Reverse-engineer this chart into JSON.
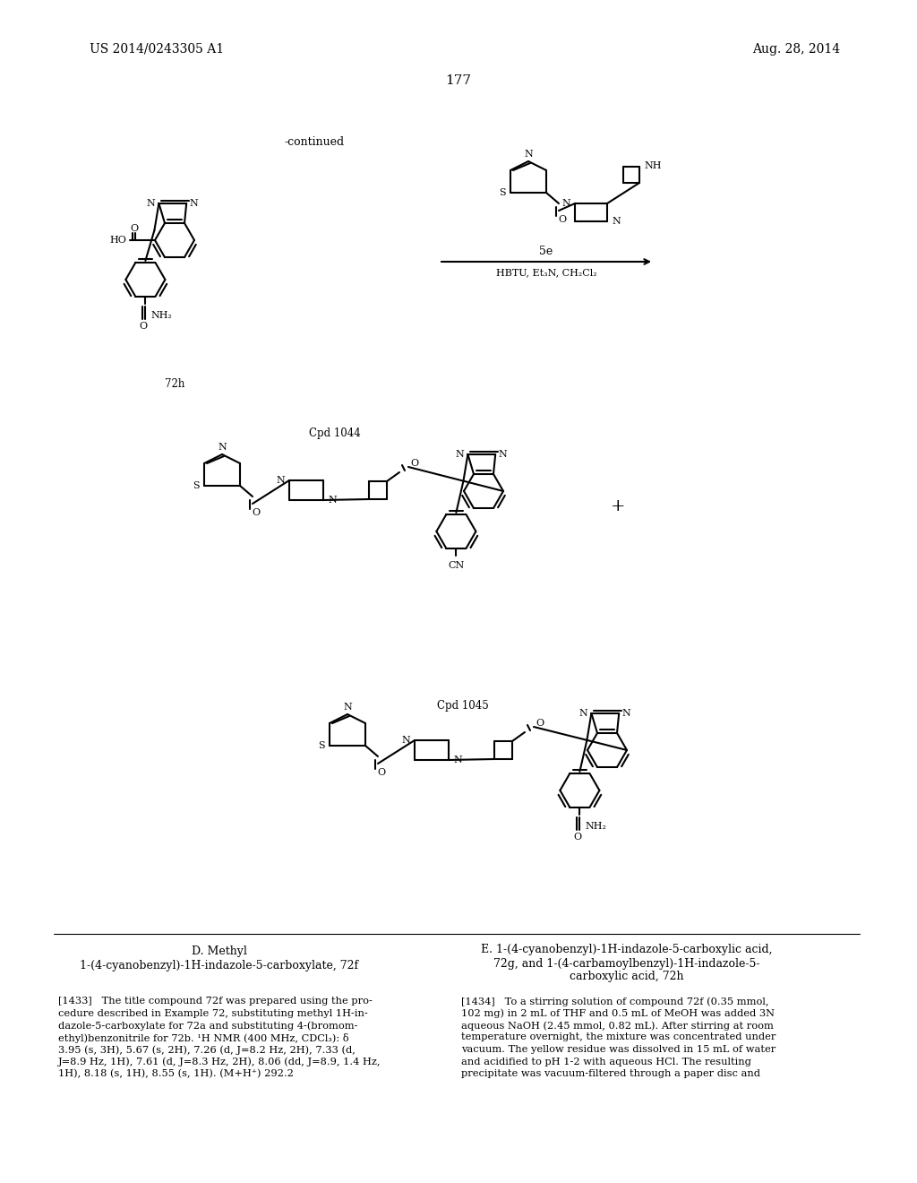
{
  "page_number": "177",
  "patent_number": "US 2014/0243305 A1",
  "patent_date": "Aug. 28, 2014",
  "continued_label": "-continued",
  "background_color": "#ffffff",
  "text_color": "#000000",
  "reaction_label": "5e",
  "reaction_conditions": "HBTU, Et₃N, CH₂Cl₂",
  "compound_72h": "72h",
  "compound_1044": "Cpd 1044",
  "compound_1045": "Cpd 1045",
  "lines_1433": [
    "[1433]   The title compound 72f was prepared using the pro-",
    "cedure described in Example 72, substituting methyl 1H-in-",
    "dazole-5-carboxylate for 72a and substituting 4-(bromom-",
    "ethyl)benzonitrile for 72b. ¹H NMR (400 MHz, CDCl₃): δ",
    "3.95 (s, 3H), 5.67 (s, 2H), 7.26 (d, J=8.2 Hz, 2H), 7.33 (d,",
    "J=8.9 Hz, 1H), 7.61 (d, J=8.3 Hz, 2H), 8.06 (dd, J=8.9, 1.4 Hz,",
    "1H), 8.18 (s, 1H), 8.55 (s, 1H). (M+H⁺) 292.2"
  ],
  "lines_1434": [
    "[1434]   To a stirring solution of compound 72f (0.35 mmol,",
    "102 mg) in 2 mL of THF and 0.5 mL of MeOH was added 3N",
    "aqueous NaOH (2.45 mmol, 0.82 mL). After stirring at room",
    "temperature overnight, the mixture was concentrated under",
    "vacuum. The yellow residue was dissolved in 15 mL of water",
    "and acidified to pH 1-2 with aqueous HCl. The resulting",
    "precipitate was vacuum-filtered through a paper disc and"
  ]
}
